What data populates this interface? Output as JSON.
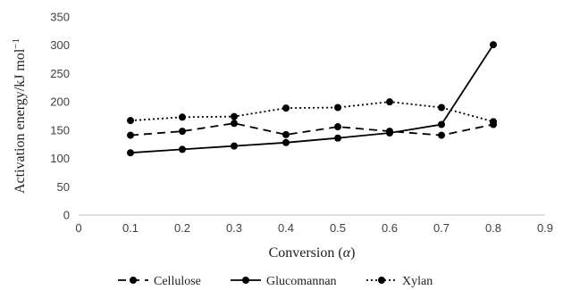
{
  "chart_data": {
    "type": "line",
    "title": "",
    "xlabel_main": "Conversion (",
    "xlabel_symbol": "α",
    "xlabel_close": ")",
    "ylabel_main": "Activation energy/kJ mol",
    "ylabel_sup": "−1",
    "xlim": [
      0,
      0.9
    ],
    "ylim": [
      0,
      350
    ],
    "x_ticks": [
      "0",
      "0.1",
      "0.2",
      "0.3",
      "0.4",
      "0.5",
      "0.6",
      "0.7",
      "0.8",
      "0.9"
    ],
    "y_ticks": [
      "0",
      "50",
      "100",
      "150",
      "200",
      "250",
      "300",
      "350"
    ],
    "grid": false,
    "legend_position": "bottom",
    "series": [
      {
        "name": "Cellulose",
        "style": "dashed",
        "color": "#000000",
        "x": [
          0.1,
          0.2,
          0.3,
          0.4,
          0.5,
          0.6,
          0.7,
          0.8
        ],
        "y": [
          141,
          148,
          162,
          142,
          156,
          148,
          141,
          160
        ]
      },
      {
        "name": "Glucomannan",
        "style": "solid",
        "color": "#000000",
        "x": [
          0.1,
          0.2,
          0.3,
          0.4,
          0.5,
          0.6,
          0.7,
          0.8
        ],
        "y": [
          110,
          116,
          122,
          128,
          136,
          145,
          160,
          301
        ]
      },
      {
        "name": "Xylan",
        "style": "dotted",
        "color": "#000000",
        "x": [
          0.1,
          0.2,
          0.3,
          0.4,
          0.5,
          0.6,
          0.7,
          0.8
        ],
        "y": [
          167,
          173,
          174,
          189,
          190,
          200,
          190,
          165
        ]
      }
    ]
  }
}
